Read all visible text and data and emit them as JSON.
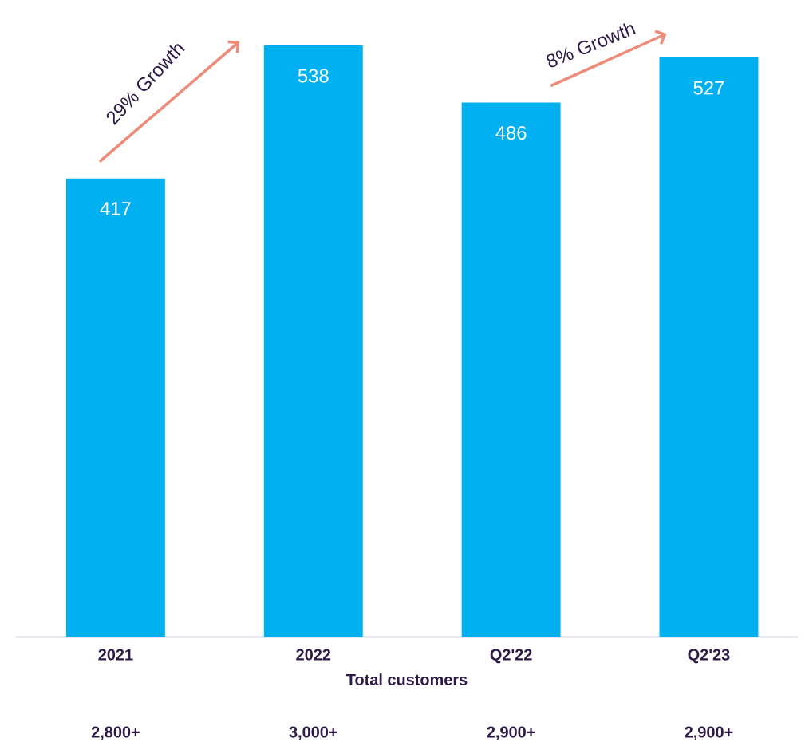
{
  "chart_data": {
    "type": "bar",
    "categories": [
      "2021",
      "2022",
      "Q2'22",
      "Q2'23"
    ],
    "values": [
      417,
      538,
      486,
      527
    ],
    "color": "#00b0f0",
    "data_labels": true,
    "tick_labels": "x",
    "xlabel": "Total customers",
    "annotations": [
      "29% Growth",
      "8% Growth",
      "2,800+",
      "3,000+",
      "2,900+",
      "2,900+"
    ]
  }
}
